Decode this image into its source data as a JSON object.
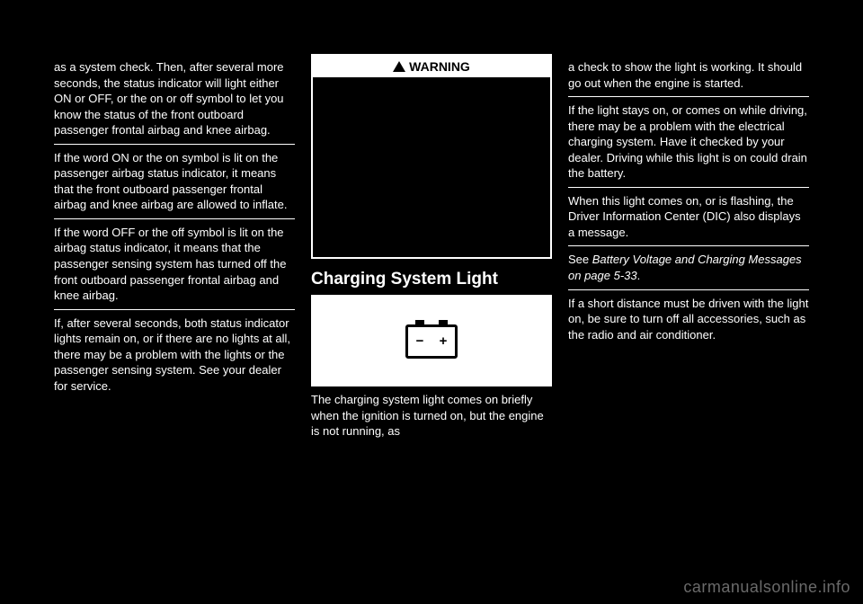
{
  "col1": {
    "p1": "as a system check. Then, after several more seconds, the status indicator will light either ON or OFF, or the on or off symbol to let you know the status of the front outboard passenger frontal airbag and knee airbag.",
    "p2": "If the word ON or the on symbol is lit on the passenger airbag status indicator, it means that the front outboard passenger frontal airbag and knee airbag are allowed to inflate.",
    "p3": "If the word OFF or the off symbol is lit on the airbag status indicator, it means that the passenger sensing system has turned off the front outboard passenger frontal airbag and knee airbag.",
    "p4": "If, after several seconds, both status indicator lights remain on, or if there are no lights at all, there may be a problem with the lights or the passenger sensing system. See your dealer for service."
  },
  "col2": {
    "warning_label": "WARNING",
    "section_title": "Charging System Light",
    "battery_minus": "−",
    "battery_plus": "+",
    "p1": "The charging system light comes on briefly when the ignition is turned on, but the engine is not running, as"
  },
  "col3": {
    "p1": "a check to show the light is working. It should go out when the engine is started.",
    "p2": "If the light stays on, or comes on while driving, there may be a problem with the electrical charging system. Have it checked by your dealer. Driving while this light is on could drain the battery.",
    "p3": "When this light comes on, or is flashing, the Driver Information Center (DIC) also displays a message.",
    "p4a": "See ",
    "p4b": "Battery Voltage and Charging Messages on page 5-33",
    "p4c": ".",
    "p5": "If a short distance must be driven with the light on, be sure to turn off all accessories, such as the radio and air conditioner."
  },
  "watermark": "carmanualsonline.info",
  "colors": {
    "bg": "#000000",
    "fg": "#ffffff",
    "watermark": "#6a6a6a"
  }
}
